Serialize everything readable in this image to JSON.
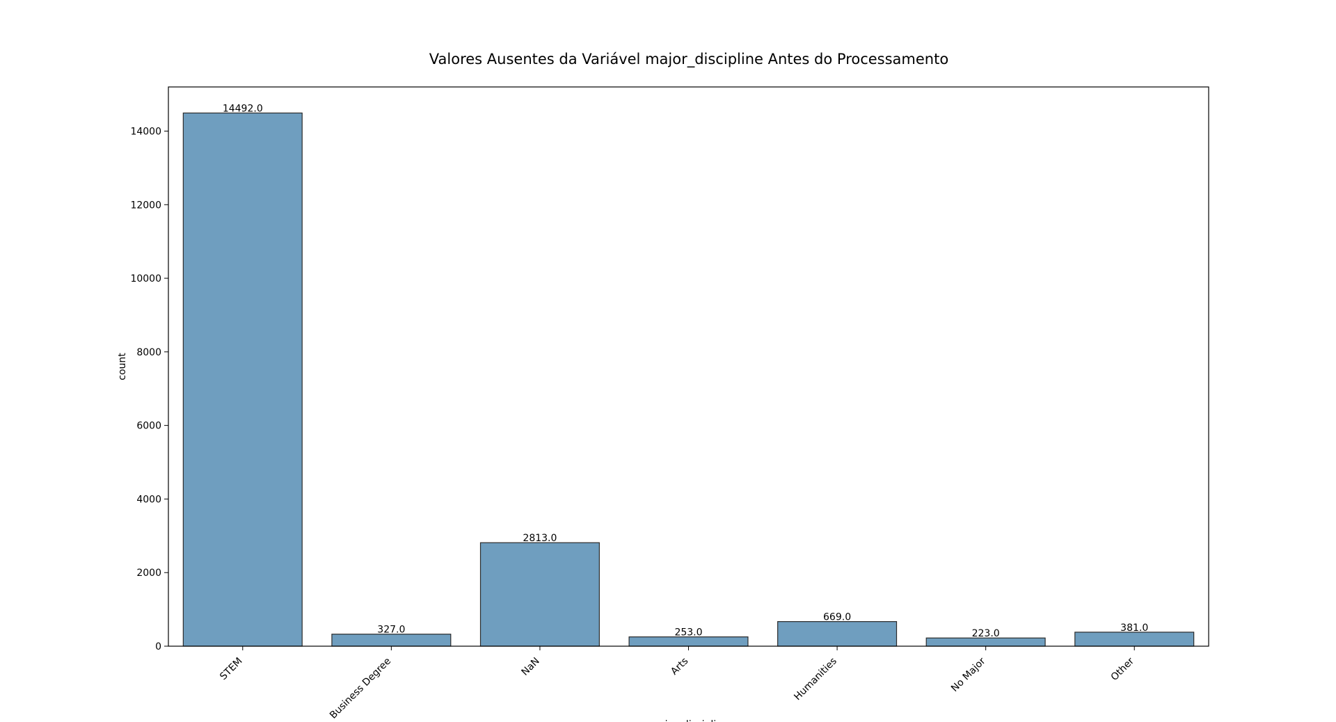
{
  "chart_data": {
    "type": "bar",
    "title": "Valores Ausentes da Variável major_discipline Antes do Processamento",
    "xlabel": "major_discipline",
    "ylabel": "count",
    "categories": [
      "STEM",
      "Business Degree",
      "NaN",
      "Arts",
      "Humanities",
      "No Major",
      "Other"
    ],
    "values": [
      14492,
      327,
      2813,
      253,
      669,
      223,
      381
    ],
    "data_labels": [
      "14492.0",
      "327.0",
      "2813.0",
      "253.0",
      "669.0",
      "223.0",
      "381.0"
    ],
    "ylim": [
      0,
      15200
    ],
    "yticks": [
      0,
      2000,
      4000,
      6000,
      8000,
      10000,
      12000,
      14000
    ],
    "ytick_labels": [
      "0",
      "2000",
      "4000",
      "6000",
      "8000",
      "10000",
      "12000",
      "14000"
    ],
    "grid": false,
    "bar_color": "#6f9ebf",
    "edge_color": "#2b2b2b"
  }
}
